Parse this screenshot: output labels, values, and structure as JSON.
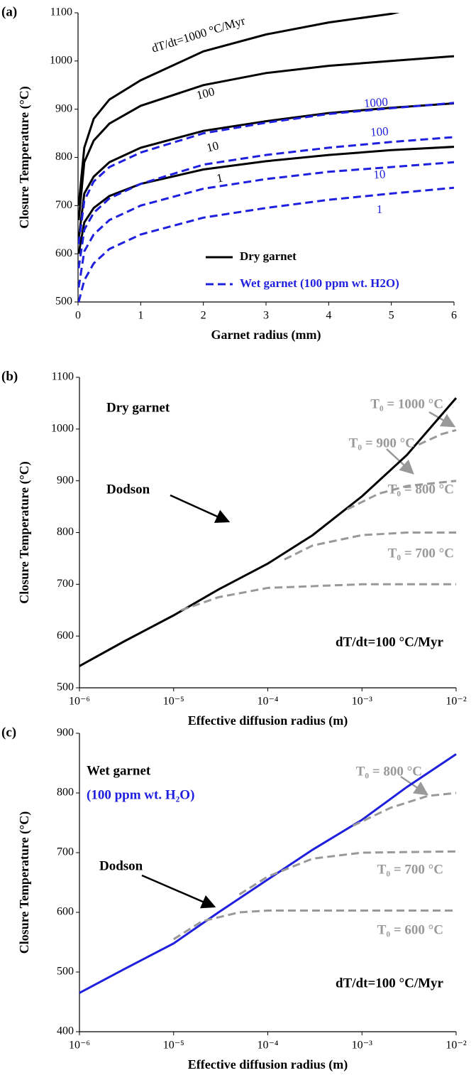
{
  "chart_data": [
    {
      "type": "line",
      "panel_label": "(a)",
      "xlabel": "Garnet radius (mm)",
      "ylabel": "Closure Temperature (°C)",
      "xlim": [
        0,
        6
      ],
      "ylim": [
        500,
        1100
      ],
      "xticks": [
        0,
        1,
        2,
        3,
        4,
        5,
        6
      ],
      "yticks": [
        500,
        600,
        700,
        800,
        900,
        1000,
        1100
      ],
      "x": [
        0.01,
        0.1,
        0.25,
        0.5,
        1,
        2,
        3,
        4,
        5,
        6
      ],
      "series": [
        {
          "label": "dT/dt=1000 °C/Myr",
          "color": "#000000",
          "dash": false,
          "values": [
            700,
            820,
            880,
            920,
            960,
            1020,
            1055,
            1080,
            1098,
            1130
          ]
        },
        {
          "label": "100",
          "color": "#000000",
          "dash": false,
          "values": [
            670,
            790,
            835,
            870,
            907,
            950,
            975,
            990,
            1000,
            1010
          ]
        },
        {
          "label": "10",
          "color": "#000000",
          "dash": false,
          "values": [
            630,
            725,
            760,
            790,
            820,
            855,
            875,
            892,
            903,
            912
          ]
        },
        {
          "label": "1",
          "color": "#000000",
          "dash": false,
          "values": [
            600,
            665,
            695,
            720,
            745,
            775,
            792,
            805,
            815,
            822
          ]
        },
        {
          "label": "1000",
          "color": "#1f1fdf",
          "dash": true,
          "values": [
            620,
            710,
            750,
            780,
            810,
            850,
            872,
            890,
            902,
            913
          ]
        },
        {
          "label": "100",
          "color": "#1f1fdf",
          "dash": true,
          "values": [
            570,
            650,
            685,
            715,
            745,
            785,
            805,
            820,
            832,
            842
          ]
        },
        {
          "label": "10",
          "color": "#1f1fdf",
          "dash": true,
          "values": [
            530,
            605,
            640,
            670,
            700,
            735,
            755,
            770,
            780,
            790
          ]
        },
        {
          "label": "1",
          "color": "#1f1fdf",
          "dash": true,
          "values": [
            500,
            545,
            580,
            610,
            640,
            675,
            695,
            712,
            725,
            737
          ]
        }
      ],
      "legend": [
        {
          "label": "Dry garnet",
          "color": "#000000",
          "dash": false
        },
        {
          "label": "Wet garnet (100 ppm wt. H2O)",
          "color": "#1f1fdf",
          "dash": true
        }
      ],
      "annotations": []
    },
    {
      "type": "line",
      "panel_label": "(b)",
      "xlabel": "Effective diffusion radius (m)",
      "ylabel": "Closure Temperature (°C)",
      "xscale": "log",
      "xlim": [
        1e-06,
        0.01
      ],
      "ylim": [
        500,
        1100
      ],
      "xticks": [
        {
          "value": 1e-06,
          "label": "10⁻⁶"
        },
        {
          "value": 1e-05,
          "label": "10⁻⁵"
        },
        {
          "value": 0.0001,
          "label": "10⁻⁴"
        },
        {
          "value": 0.001,
          "label": "10⁻³"
        },
        {
          "value": 0.01,
          "label": "10⁻²"
        }
      ],
      "yticks": [
        500,
        600,
        700,
        800,
        900,
        1000,
        1100
      ],
      "series": [
        {
          "color": "#000000",
          "dash": false,
          "x": [
            1e-06,
            3e-06,
            1e-05,
            3e-05,
            0.0001,
            0.0003,
            0.001,
            0.003,
            0.01
          ],
          "values": [
            542,
            590,
            640,
            690,
            740,
            795,
            870,
            950,
            1060
          ]
        },
        {
          "color": "#999999",
          "dash": true,
          "x": [
            1.2e-05,
            3e-05,
            0.0001,
            0.001,
            0.01
          ],
          "values": [
            650,
            675,
            693,
            700,
            700
          ]
        },
        {
          "color": "#999999",
          "dash": true,
          "x": [
            0.00015,
            0.0003,
            0.001,
            0.003,
            0.01
          ],
          "values": [
            748,
            775,
            795,
            800,
            800
          ]
        },
        {
          "color": "#999999",
          "dash": true,
          "x": [
            0.0007,
            0.0015,
            0.003,
            0.01
          ],
          "values": [
            845,
            875,
            890,
            900
          ]
        },
        {
          "color": "#999999",
          "dash": true,
          "x": [
            0.004,
            0.007,
            0.01
          ],
          "values": [
            970,
            990,
            998
          ]
        }
      ],
      "annotations": [
        {
          "text": "Dry garnet",
          "color": "#000000"
        },
        {
          "text": "T₀ = 1000 °C",
          "color": "#999999"
        },
        {
          "text": "T₀ = 900 °C",
          "color": "#999999"
        },
        {
          "text": "T₀ = 800 °C",
          "color": "#999999"
        },
        {
          "text": "T₀ = 700 °C",
          "color": "#999999"
        },
        {
          "text": "Dodson",
          "color": "#000000"
        },
        {
          "text": "dT/dt=100 °C/Myr",
          "color": "#000000"
        }
      ]
    },
    {
      "type": "line",
      "panel_label": "(c)",
      "xlabel": "Effective diffusion radius (m)",
      "ylabel": "Closure Temperature (°C)",
      "xscale": "log",
      "xlim": [
        1e-06,
        0.01
      ],
      "ylim": [
        400,
        900
      ],
      "xticks": [
        {
          "value": 1e-06,
          "label": "10⁻⁶"
        },
        {
          "value": 1e-05,
          "label": "10⁻⁵"
        },
        {
          "value": 0.0001,
          "label": "10⁻⁴"
        },
        {
          "value": 0.001,
          "label": "10⁻³"
        },
        {
          "value": 0.01,
          "label": "10⁻²"
        }
      ],
      "yticks": [
        400,
        500,
        600,
        700,
        800,
        900
      ],
      "series": [
        {
          "color": "#1f1fdf",
          "dash": false,
          "x": [
            1e-06,
            3e-06,
            1e-05,
            3e-05,
            0.0001,
            0.0003,
            0.001,
            0.003,
            0.01
          ],
          "values": [
            465,
            505,
            548,
            600,
            655,
            705,
            755,
            810,
            865
          ]
        },
        {
          "color": "#999999",
          "dash": true,
          "x": [
            1e-05,
            2e-05,
            5e-05,
            0.0001,
            0.01
          ],
          "values": [
            555,
            585,
            600,
            603,
            603
          ]
        },
        {
          "color": "#999999",
          "dash": true,
          "x": [
            5e-05,
            0.0001,
            0.0003,
            0.001,
            0.01
          ],
          "values": [
            630,
            660,
            690,
            700,
            702
          ]
        },
        {
          "color": "#999999",
          "dash": true,
          "x": [
            0.0008,
            0.002,
            0.005,
            0.01
          ],
          "values": [
            745,
            775,
            795,
            800
          ]
        }
      ],
      "annotations": [
        {
          "text": "Wet garnet",
          "color": "#000000"
        },
        {
          "text": "(100 ppm wt. H₂O)",
          "color": "#1f1fdf"
        },
        {
          "text": "T₀ = 800 °C",
          "color": "#999999"
        },
        {
          "text": "T₀ = 700 °C",
          "color": "#999999"
        },
        {
          "text": "T₀ = 600 °C",
          "color": "#999999"
        },
        {
          "text": "Dodson",
          "color": "#000000"
        },
        {
          "text": "dT/dt=100 °C/Myr",
          "color": "#000000"
        }
      ]
    }
  ]
}
